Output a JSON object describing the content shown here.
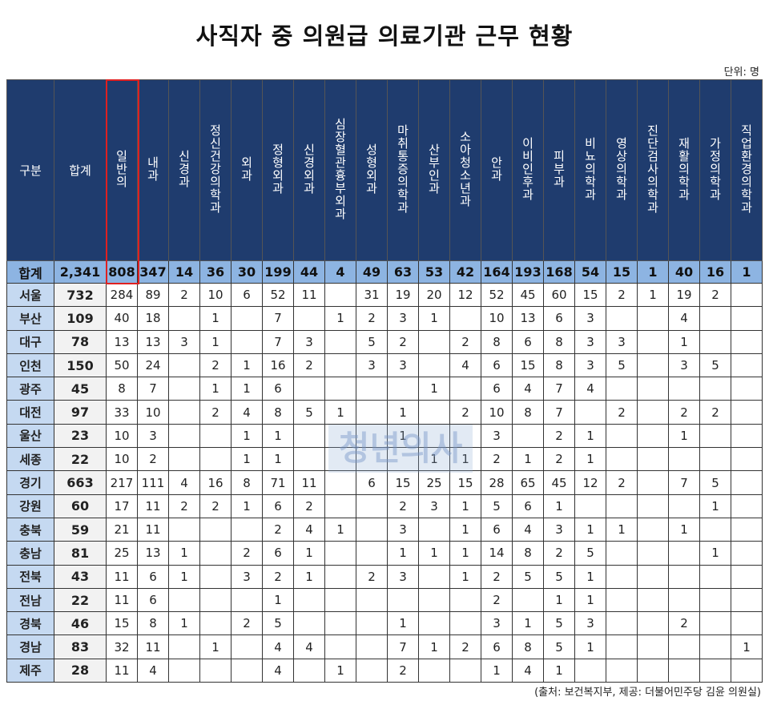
{
  "title": "사직자 중 의원급 의료기관 근무 현황",
  "unit": "단위: 명",
  "watermark": "청년의사",
  "source": "(출처: 보건복지부, 제공: 더불어민주당 김윤 의원실)",
  "headers": [
    "구분",
    "합계",
    "일반의",
    "내과",
    "신경과",
    "정신건강의학과",
    "외과",
    "정형외과",
    "신경외과",
    "심장혈관흉부외과",
    "성형외과",
    "마취통증의학과",
    "산부인과",
    "소아청소년과",
    "안과",
    "이비인후과",
    "피부과",
    "비뇨의학과",
    "영상의학과",
    "진단검사의학과",
    "재활의학과",
    "가정의학과",
    "직업환경의학과"
  ],
  "highlight_color": "#e02020",
  "rows": [
    [
      "합계",
      "2,341",
      "808",
      "347",
      "14",
      "36",
      "30",
      "199",
      "44",
      "4",
      "49",
      "63",
      "53",
      "42",
      "164",
      "193",
      "168",
      "54",
      "15",
      "1",
      "40",
      "16",
      "1"
    ],
    [
      "서울",
      "732",
      "284",
      "89",
      "2",
      "10",
      "6",
      "52",
      "11",
      "",
      "31",
      "19",
      "20",
      "12",
      "52",
      "45",
      "60",
      "15",
      "2",
      "1",
      "19",
      "2",
      ""
    ],
    [
      "부산",
      "109",
      "40",
      "18",
      "",
      "1",
      "",
      "7",
      "",
      "1",
      "2",
      "3",
      "1",
      "",
      "10",
      "13",
      "6",
      "3",
      "",
      "",
      "4",
      "",
      ""
    ],
    [
      "대구",
      "78",
      "13",
      "13",
      "3",
      "1",
      "",
      "7",
      "3",
      "",
      "5",
      "2",
      "",
      "2",
      "8",
      "6",
      "8",
      "3",
      "3",
      "",
      "1",
      "",
      ""
    ],
    [
      "인천",
      "150",
      "50",
      "24",
      "",
      "2",
      "1",
      "16",
      "2",
      "",
      "3",
      "3",
      "",
      "4",
      "6",
      "15",
      "8",
      "3",
      "5",
      "",
      "3",
      "5",
      ""
    ],
    [
      "광주",
      "45",
      "8",
      "7",
      "",
      "1",
      "1",
      "6",
      "",
      "",
      "",
      "",
      "1",
      "",
      "6",
      "4",
      "7",
      "4",
      "",
      "",
      "",
      "",
      ""
    ],
    [
      "대전",
      "97",
      "33",
      "10",
      "",
      "2",
      "4",
      "8",
      "5",
      "1",
      "",
      "1",
      "",
      "2",
      "10",
      "8",
      "7",
      "",
      "2",
      "",
      "2",
      "2",
      ""
    ],
    [
      "울산",
      "23",
      "10",
      "3",
      "",
      "",
      "1",
      "1",
      "",
      "",
      "",
      "1",
      "",
      "",
      "3",
      "",
      "2",
      "1",
      "",
      "",
      "1",
      "",
      ""
    ],
    [
      "세종",
      "22",
      "10",
      "2",
      "",
      "",
      "1",
      "1",
      "",
      "",
      "",
      "",
      "1",
      "1",
      "2",
      "1",
      "2",
      "1",
      "",
      "",
      "",
      "",
      ""
    ],
    [
      "경기",
      "663",
      "217",
      "111",
      "4",
      "16",
      "8",
      "71",
      "11",
      "",
      "6",
      "15",
      "25",
      "15",
      "28",
      "65",
      "45",
      "12",
      "2",
      "",
      "7",
      "5",
      ""
    ],
    [
      "강원",
      "60",
      "17",
      "11",
      "2",
      "2",
      "1",
      "6",
      "2",
      "",
      "",
      "2",
      "3",
      "1",
      "5",
      "6",
      "1",
      "",
      "",
      "",
      "",
      "1",
      ""
    ],
    [
      "충북",
      "59",
      "21",
      "11",
      "",
      "",
      "",
      "2",
      "4",
      "1",
      "",
      "3",
      "",
      "1",
      "6",
      "4",
      "3",
      "1",
      "1",
      "",
      "1",
      "",
      ""
    ],
    [
      "충남",
      "81",
      "25",
      "13",
      "1",
      "",
      "2",
      "6",
      "1",
      "",
      "",
      "1",
      "1",
      "1",
      "14",
      "8",
      "2",
      "5",
      "",
      "",
      "",
      "1",
      ""
    ],
    [
      "전북",
      "43",
      "11",
      "6",
      "1",
      "",
      "3",
      "2",
      "1",
      "",
      "2",
      "3",
      "",
      "1",
      "2",
      "5",
      "5",
      "1",
      "",
      "",
      "",
      "",
      ""
    ],
    [
      "전남",
      "22",
      "11",
      "6",
      "",
      "",
      "",
      "1",
      "",
      "",
      "",
      "",
      "",
      "",
      "2",
      "",
      "1",
      "1",
      "",
      "",
      "",
      "",
      ""
    ],
    [
      "경북",
      "46",
      "15",
      "8",
      "1",
      "",
      "2",
      "5",
      "",
      "",
      "",
      "1",
      "",
      "",
      "3",
      "1",
      "5",
      "3",
      "",
      "",
      "2",
      "",
      ""
    ],
    [
      "경남",
      "83",
      "32",
      "11",
      "",
      "1",
      "",
      "4",
      "4",
      "",
      "",
      "7",
      "1",
      "2",
      "6",
      "8",
      "5",
      "1",
      "",
      "",
      "",
      "",
      "1"
    ],
    [
      "제주",
      "28",
      "11",
      "4",
      "",
      "",
      "",
      "4",
      "",
      "1",
      "",
      "2",
      "",
      "",
      "1",
      "4",
      "1",
      "",
      "",
      "",
      "",
      "",
      ""
    ]
  ]
}
